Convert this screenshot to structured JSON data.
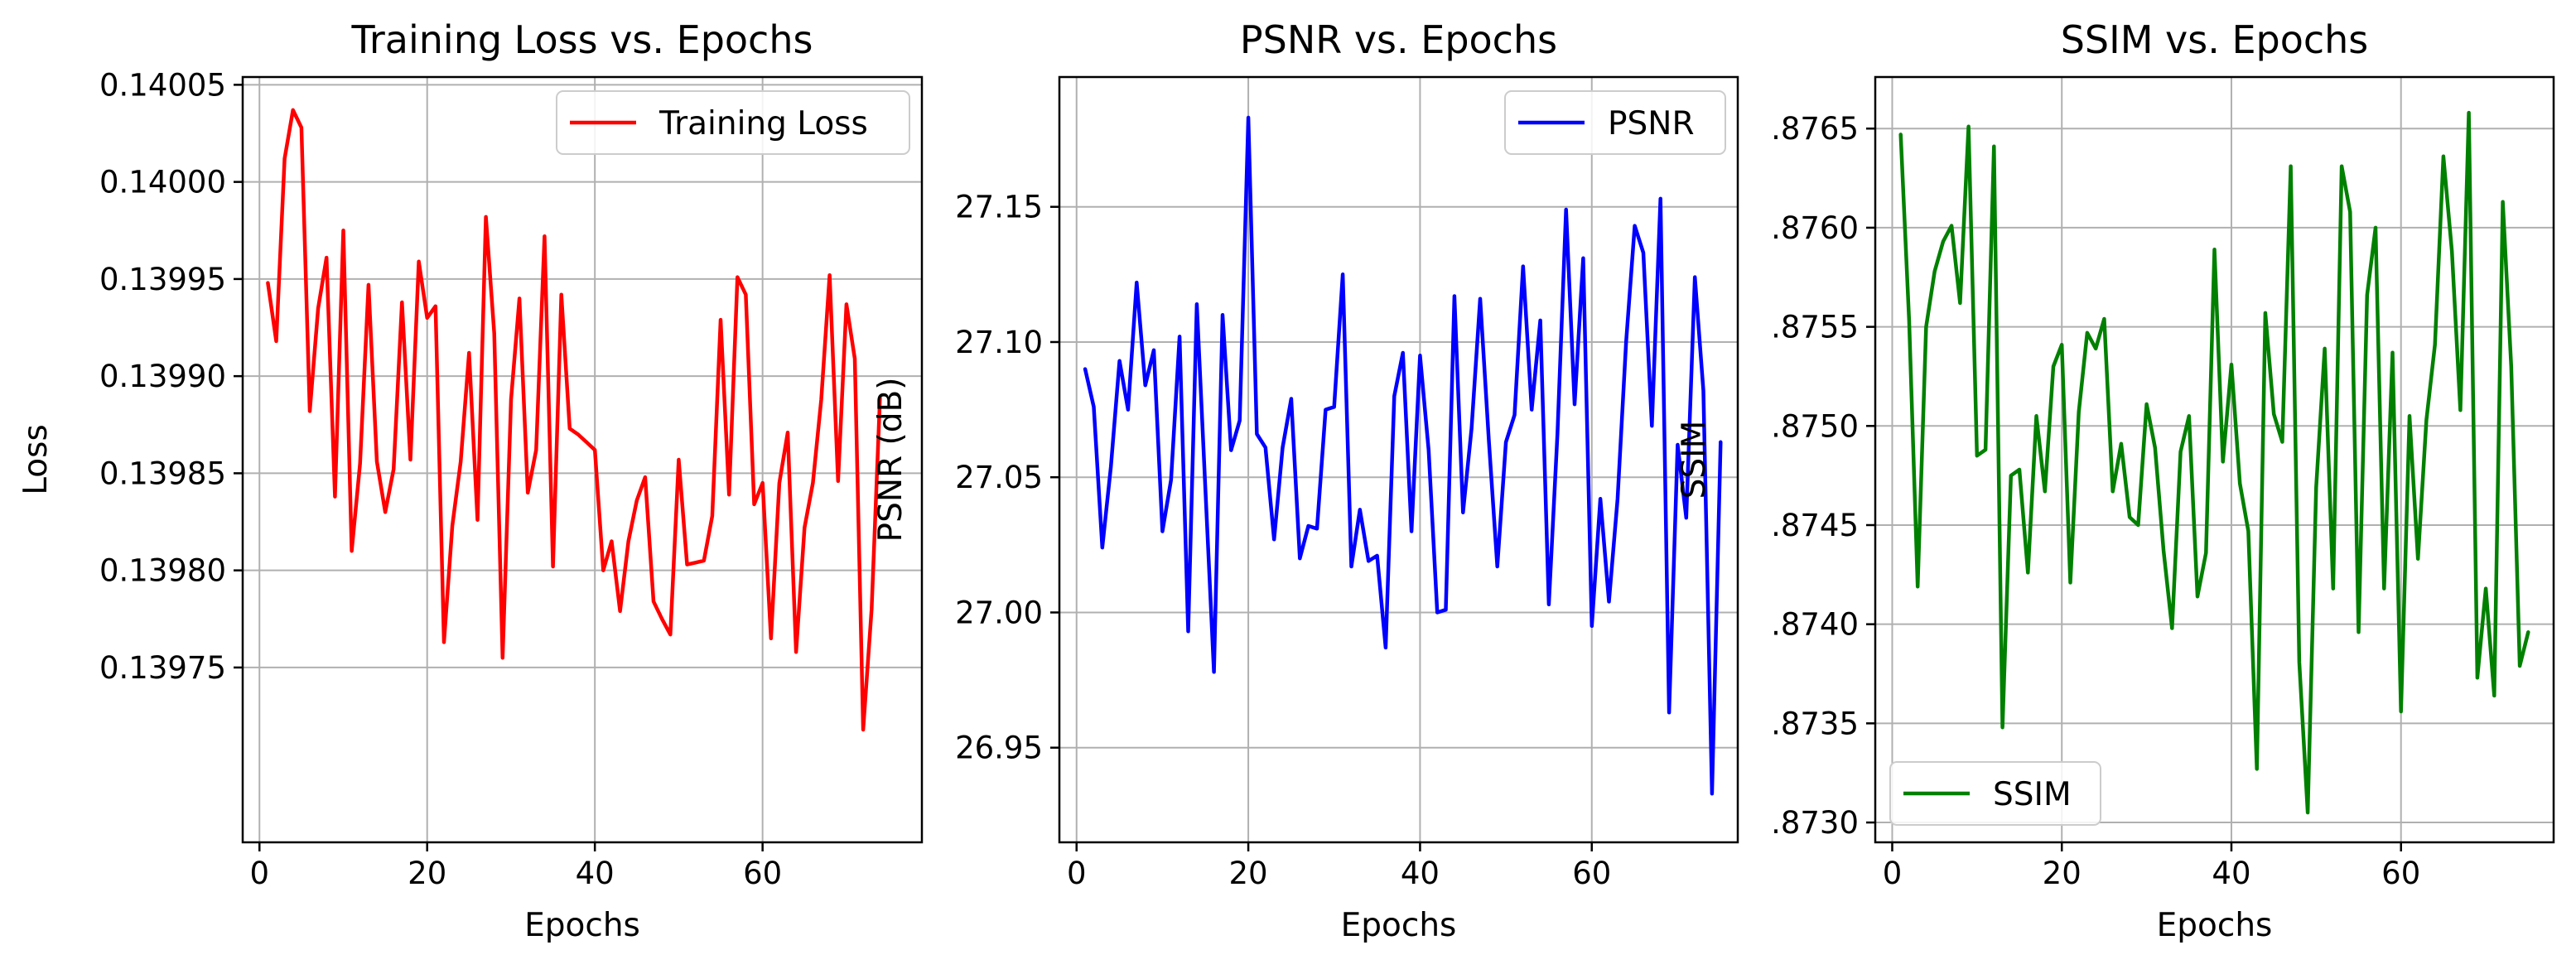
{
  "chart_data": [
    {
      "type": "line",
      "title": "Training Loss vs. Epochs",
      "xlabel": "Epochs",
      "ylabel": "Loss",
      "xlim": [
        -2,
        79
      ],
      "ylim": [
        0.13966,
        0.140054
      ],
      "xticks": [
        0,
        20,
        40,
        60
      ],
      "xtick_labels": [
        "0",
        "20",
        "40",
        "60"
      ],
      "yticks": [
        0.13975,
        0.1398,
        0.13985,
        0.1399,
        0.13995,
        0.14,
        0.14005
      ],
      "ytick_labels": [
        "0.13975",
        "0.13980",
        "0.13985",
        "0.13990",
        "0.13995",
        "0.14000",
        "0.14005"
      ],
      "grid": true,
      "legend": "top-right",
      "series": [
        {
          "name": "Training Loss",
          "color": "#ff0000",
          "x": [
            1,
            2,
            3,
            4,
            5,
            6,
            7,
            8,
            9,
            10,
            11,
            12,
            13,
            14,
            15,
            16,
            17,
            18,
            19,
            20,
            21,
            22,
            23,
            24,
            25,
            26,
            27,
            28,
            29,
            30,
            31,
            32,
            33,
            34,
            35,
            36,
            37,
            38,
            39,
            40,
            41,
            42,
            43,
            44,
            45,
            46,
            47,
            48,
            49,
            50,
            51,
            52,
            53,
            54,
            55,
            56,
            57,
            58,
            59,
            60,
            61,
            62,
            63,
            64,
            65,
            66,
            67,
            68,
            69,
            70,
            71,
            72,
            73,
            74
          ],
          "y": [
            0.139948,
            0.139918,
            0.140012,
            0.140037,
            0.140028,
            0.139882,
            0.139935,
            0.139961,
            0.139838,
            0.139975,
            0.13981,
            0.139855,
            0.139947,
            0.139856,
            0.13983,
            0.139852,
            0.139938,
            0.139857,
            0.139959,
            0.13993,
            0.139936,
            0.139763,
            0.139823,
            0.139856,
            0.139912,
            0.139826,
            0.139982,
            0.139922,
            0.139755,
            0.139888,
            0.13994,
            0.13984,
            0.139862,
            0.139972,
            0.139802,
            0.139942,
            0.139873,
            0.13987,
            0.139866,
            0.139862,
            0.1398,
            0.139815,
            0.139779,
            0.139815,
            0.139836,
            0.139848,
            0.139784,
            0.139775,
            0.139767,
            0.139857,
            0.139803,
            0.139804,
            0.139805,
            0.139828,
            0.139929,
            0.139839,
            0.139951,
            0.139942,
            0.139834,
            0.139845,
            0.139765,
            0.139845,
            0.139871,
            0.139758,
            0.139822,
            0.139845,
            0.139888,
            0.139952,
            0.139846,
            0.139937,
            0.139909,
            0.139718,
            0.13978,
            0.139889
          ]
        }
      ]
    },
    {
      "type": "line",
      "title": "PSNR vs. Epochs",
      "xlabel": "Epochs",
      "ylabel": "PSNR (dB)",
      "xlim": [
        -2,
        77
      ],
      "ylim": [
        26.915,
        27.198
      ],
      "xticks": [
        0,
        20,
        40,
        60
      ],
      "xtick_labels": [
        "0",
        "20",
        "40",
        "60"
      ],
      "yticks": [
        26.95,
        27.0,
        27.05,
        27.1,
        27.15
      ],
      "ytick_labels": [
        "26.95",
        "27.00",
        "27.05",
        "27.10",
        "27.15"
      ],
      "grid": true,
      "legend": "top-right",
      "series": [
        {
          "name": "PSNR",
          "color": "#0000ff",
          "x": [
            1,
            2,
            3,
            4,
            5,
            6,
            7,
            8,
            9,
            10,
            11,
            12,
            13,
            14,
            15,
            16,
            17,
            18,
            19,
            20,
            21,
            22,
            23,
            24,
            25,
            26,
            27,
            28,
            29,
            30,
            31,
            32,
            33,
            34,
            35,
            36,
            37,
            38,
            39,
            40,
            41,
            42,
            43,
            44,
            45,
            46,
            47,
            48,
            49,
            50,
            51,
            52,
            53,
            54,
            55,
            56,
            57,
            58,
            59,
            60,
            61,
            62,
            63,
            64,
            65,
            66,
            67,
            68,
            69,
            70,
            71,
            72,
            73,
            74,
            75
          ],
          "y": [
            27.09,
            27.076,
            27.024,
            27.054,
            27.093,
            27.075,
            27.122,
            27.084,
            27.097,
            27.03,
            27.049,
            27.102,
            26.993,
            27.114,
            27.046,
            26.978,
            27.11,
            27.06,
            27.071,
            27.183,
            27.066,
            27.061,
            27.027,
            27.061,
            27.079,
            27.02,
            27.032,
            27.031,
            27.075,
            27.076,
            27.125,
            27.017,
            27.038,
            27.019,
            27.021,
            26.987,
            27.08,
            27.096,
            27.03,
            27.095,
            27.06,
            27.0,
            27.001,
            27.117,
            27.037,
            27.068,
            27.116,
            27.064,
            27.017,
            27.063,
            27.073,
            27.128,
            27.075,
            27.108,
            27.003,
            27.066,
            27.149,
            27.077,
            27.131,
            26.995,
            27.042,
            27.004,
            27.042,
            27.1,
            27.143,
            27.133,
            27.069,
            27.153,
            26.963,
            27.062,
            27.035,
            27.124,
            27.082,
            26.933,
            27.063
          ]
        }
      ]
    },
    {
      "type": "line",
      "title": "SSIM vs. Epochs",
      "xlabel": "Epochs",
      "ylabel": "SSIM",
      "xlim": [
        -2,
        78
      ],
      "ylim": [
        0.8729,
        0.87676
      ],
      "xticks": [
        0,
        20,
        40,
        60
      ],
      "xtick_labels": [
        "0",
        "20",
        "40",
        "60"
      ],
      "yticks": [
        0.873,
        0.8735,
        0.874,
        0.8745,
        0.875,
        0.8755,
        0.876,
        0.8765
      ],
      "ytick_labels": [
        ".8730",
        ".8735",
        ".8740",
        ".8745",
        ".8750",
        ".8755",
        ".8760",
        ".8765"
      ],
      "grid": true,
      "legend": "bottom-left",
      "series": [
        {
          "name": "SSIM",
          "color": "#008000",
          "x": [
            1,
            2,
            3,
            4,
            5,
            6,
            7,
            8,
            9,
            10,
            11,
            12,
            13,
            14,
            15,
            16,
            17,
            18,
            19,
            20,
            21,
            22,
            23,
            24,
            25,
            26,
            27,
            28,
            29,
            30,
            31,
            32,
            33,
            34,
            35,
            36,
            37,
            38,
            39,
            40,
            41,
            42,
            43,
            44,
            45,
            46,
            47,
            48,
            49,
            50,
            51,
            52,
            53,
            54,
            55,
            56,
            57,
            58,
            59,
            60,
            61,
            62,
            63,
            64,
            65,
            66,
            67,
            68,
            69,
            70,
            71,
            72,
            73,
            74,
            75
          ],
          "y": [
            0.87647,
            0.87553,
            0.87419,
            0.8755,
            0.87578,
            0.87593,
            0.87601,
            0.87562,
            0.87651,
            0.87485,
            0.87488,
            0.87641,
            0.87348,
            0.87475,
            0.87478,
            0.87426,
            0.87505,
            0.87467,
            0.8753,
            0.87541,
            0.87421,
            0.87507,
            0.87547,
            0.87539,
            0.87554,
            0.87467,
            0.87491,
            0.87454,
            0.8745,
            0.87511,
            0.87489,
            0.87437,
            0.87398,
            0.87487,
            0.87505,
            0.87414,
            0.87436,
            0.87589,
            0.87482,
            0.87531,
            0.87471,
            0.87447,
            0.87327,
            0.87557,
            0.87506,
            0.87492,
            0.87631,
            0.87381,
            0.87305,
            0.87469,
            0.87539,
            0.87418,
            0.87631,
            0.87608,
            0.87396,
            0.87566,
            0.876,
            0.87418,
            0.87537,
            0.87356,
            0.87505,
            0.87433,
            0.87503,
            0.87541,
            0.87636,
            0.87588,
            0.87508,
            0.87658,
            0.87373,
            0.87418,
            0.87364,
            0.87613,
            0.8753,
            0.87379,
            0.87396
          ]
        }
      ]
    }
  ]
}
